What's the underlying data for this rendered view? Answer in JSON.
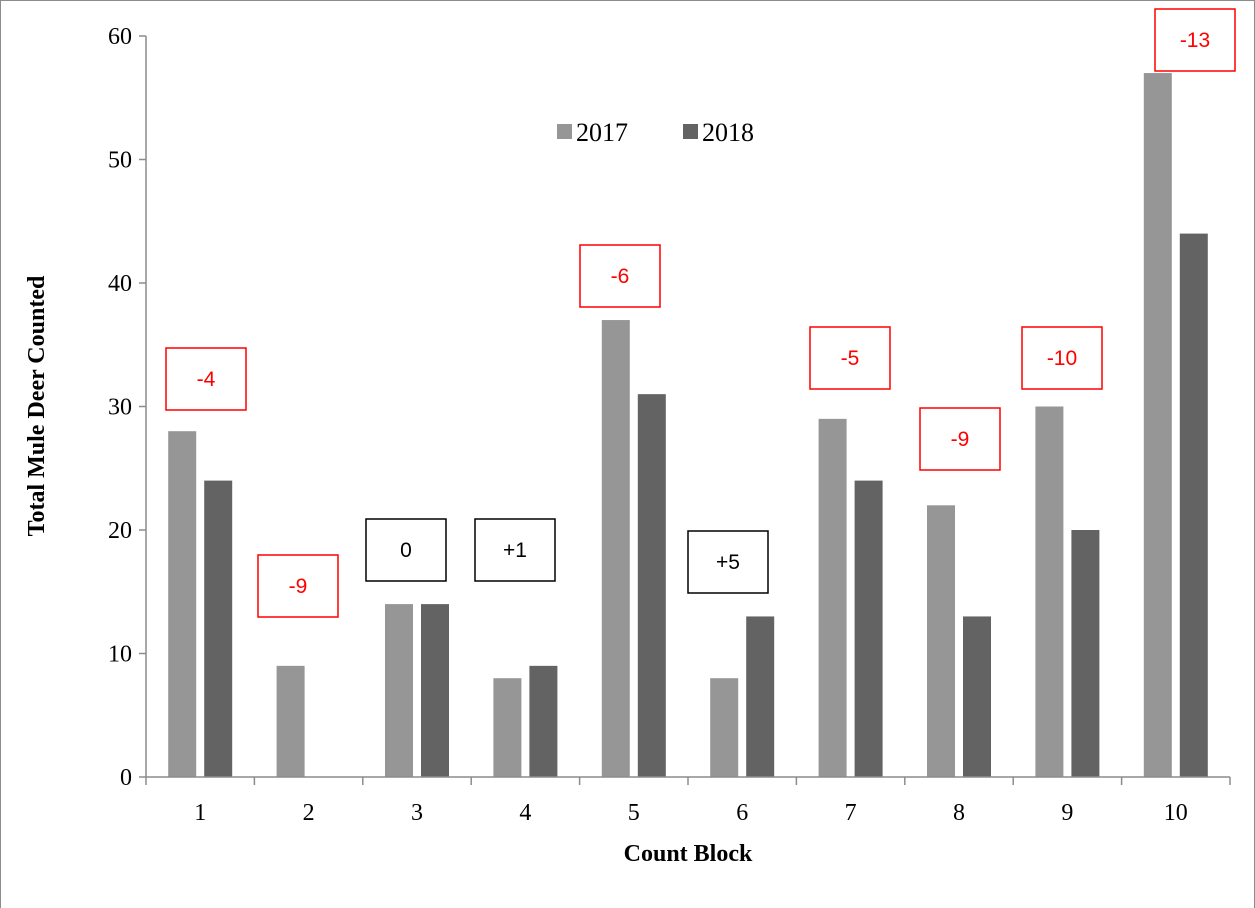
{
  "chart_data": {
    "type": "bar",
    "title": "",
    "xlabel": "Count Block",
    "ylabel": "Total Mule Deer Counted",
    "categories": [
      "1",
      "2",
      "3",
      "4",
      "5",
      "6",
      "7",
      "8",
      "9",
      "10"
    ],
    "series": [
      {
        "name": "2017",
        "color": "#969696",
        "values": [
          28,
          9,
          14,
          8,
          37,
          8,
          29,
          22,
          30,
          57
        ]
      },
      {
        "name": "2018",
        "color": "#636363",
        "values": [
          24,
          0,
          14,
          9,
          31,
          13,
          24,
          13,
          20,
          44
        ]
      }
    ],
    "ylim": [
      0,
      60
    ],
    "yticks": [
      "0",
      "10",
      "20",
      "30",
      "40",
      "50",
      "60"
    ],
    "grid": false,
    "legend_position": "top-center",
    "annotations": [
      {
        "category": "1",
        "text": "-4",
        "color": "#ff0000"
      },
      {
        "category": "2",
        "text": "-9",
        "color": "#ff0000"
      },
      {
        "category": "3",
        "text": "0",
        "color": "#000000"
      },
      {
        "category": "4",
        "text": "+1",
        "color": "#000000"
      },
      {
        "category": "5",
        "text": "-6",
        "color": "#ff0000"
      },
      {
        "category": "6",
        "text": "+5",
        "color": "#000000"
      },
      {
        "category": "7",
        "text": "-5",
        "color": "#ff0000"
      },
      {
        "category": "8",
        "text": "-9",
        "color": "#ff0000"
      },
      {
        "category": "9",
        "text": "-10",
        "color": "#ff0000"
      },
      {
        "category": "10",
        "text": "-13",
        "color": "#ff0000"
      }
    ]
  }
}
